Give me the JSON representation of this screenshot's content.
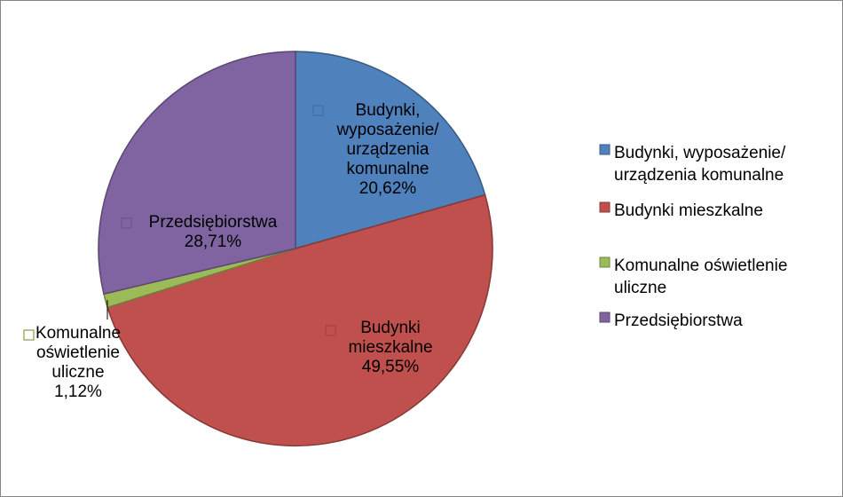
{
  "chart_data": {
    "type": "pie",
    "title": "",
    "legend_position": "right",
    "slices": [
      {
        "name": "Budynki, wyposażenie/ urządzenia komunalne",
        "value": 20.62,
        "value_label": "20,62%",
        "color": "#4F81BD",
        "label_lines": [
          "Budynki,",
          "wyposażenie/",
          "urządzenia",
          "komunalne"
        ],
        "legend_lines": [
          "Budynki, wyposażenie/",
          "urządzenia komunalne"
        ]
      },
      {
        "name": "Budynki mieszkalne",
        "value": 49.55,
        "value_label": "49,55%",
        "color": "#C0504D",
        "label_lines": [
          "Budynki",
          "mieszkalne"
        ],
        "legend_lines": [
          "Budynki mieszkalne"
        ]
      },
      {
        "name": "Komunalne oświetlenie uliczne",
        "value": 1.12,
        "value_label": "1,12%",
        "color": "#9BBB59",
        "label_lines": [
          "Komunalne",
          "oświetlenie",
          "uliczne"
        ],
        "legend_lines": [
          "Komunalne oświetlenie",
          "uliczne"
        ]
      },
      {
        "name": "Przedsiębiorstwa",
        "value": 28.71,
        "value_label": "28,71%",
        "color": "#8064A2",
        "label_lines": [
          "Przedsiębiorstwa"
        ],
        "legend_lines": [
          "Przedsiębiorstwa"
        ]
      }
    ]
  }
}
